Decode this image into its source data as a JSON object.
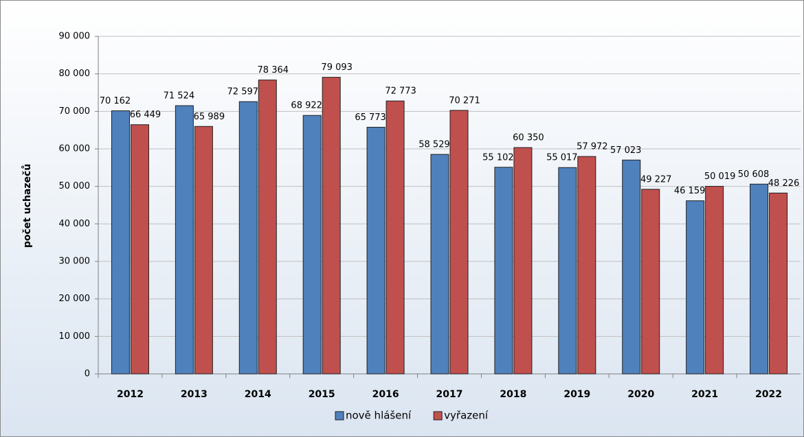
{
  "chart_data": {
    "type": "bar",
    "ylabel": "počet uchazečů",
    "categories": [
      "2012",
      "2013",
      "2014",
      "2015",
      "2016",
      "2017",
      "2018",
      "2019",
      "2020",
      "2021",
      "2022"
    ],
    "series": [
      {
        "name": "nově hlášení",
        "color": "#4f81bd",
        "values": [
          70162,
          71524,
          72597,
          68922,
          65773,
          58529,
          55102,
          55017,
          57023,
          46159,
          50608
        ],
        "value_labels": [
          "70 162",
          "71 524",
          "72 597",
          "68 922",
          "65 773",
          "58 529",
          "55 102",
          "55 017",
          "57 023",
          "46 159",
          "50 608"
        ]
      },
      {
        "name": "vyřazení",
        "color": "#c0504d",
        "values": [
          66449,
          65989,
          78364,
          79093,
          72773,
          70271,
          60350,
          57972,
          49227,
          50019,
          48226
        ],
        "value_labels": [
          "66 449",
          "65 989",
          "78 364",
          "79 093",
          "72 773",
          "70 271",
          "60 350",
          "57 972",
          "49 227",
          "50 019",
          "48 226"
        ]
      }
    ],
    "ylim": [
      0,
      90000
    ],
    "yticks": [
      0,
      {
        "value": 10000,
        "label": "10 000"
      },
      {
        "value": 20000,
        "label": "20 000"
      },
      {
        "value": 30000,
        "label": "30 000"
      },
      {
        "value": 40000,
        "label": "40 000"
      },
      {
        "value": 50000,
        "label": "50 000"
      },
      {
        "value": 60000,
        "label": "60 000"
      },
      {
        "value": 70000,
        "label": "70 000"
      },
      {
        "value": 80000,
        "label": "80 000"
      },
      {
        "value": 90000,
        "label": "90 000"
      }
    ],
    "grid": true,
    "legend": "bottom"
  }
}
